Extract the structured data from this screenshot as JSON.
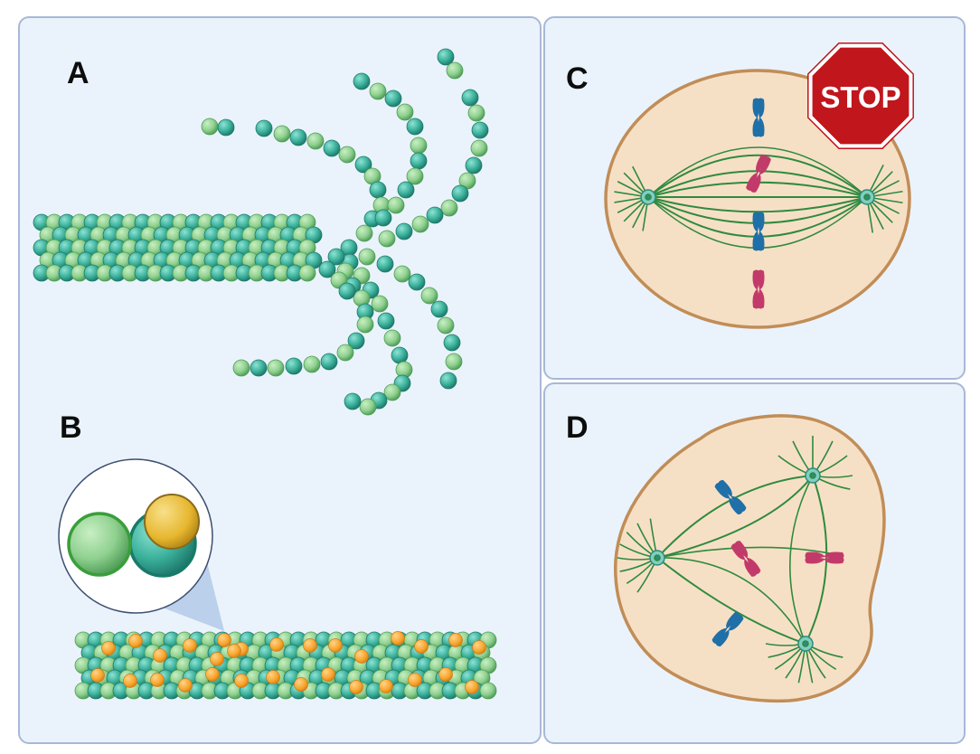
{
  "labels": {
    "a": "A",
    "b": "B",
    "c": "C",
    "d": "D"
  },
  "stop_sign_text": "STOP",
  "colors": {
    "panel_bg": "#eaf3fc",
    "panel_border": "#a8b8d6",
    "tubulin_light": "#8fd08f",
    "tubulin_dark": "#3ab09a",
    "drug_orange": "#f7a42a",
    "drug_yellow": "#e6b62e",
    "cell_fill": "#f6e0c5",
    "cell_border": "#c18d57",
    "spindle": "#2f8a3f",
    "chromosome_blue": "#1f6fa8",
    "chromosome_red": "#c23a6a",
    "stop_red": "#c0161c"
  },
  "icons": [
    "microtubule-icon",
    "tubulin-dimer-icon",
    "drug-molecule-icon",
    "mitotic-spindle-icon",
    "chromosome-icon",
    "stop-sign-icon"
  ]
}
